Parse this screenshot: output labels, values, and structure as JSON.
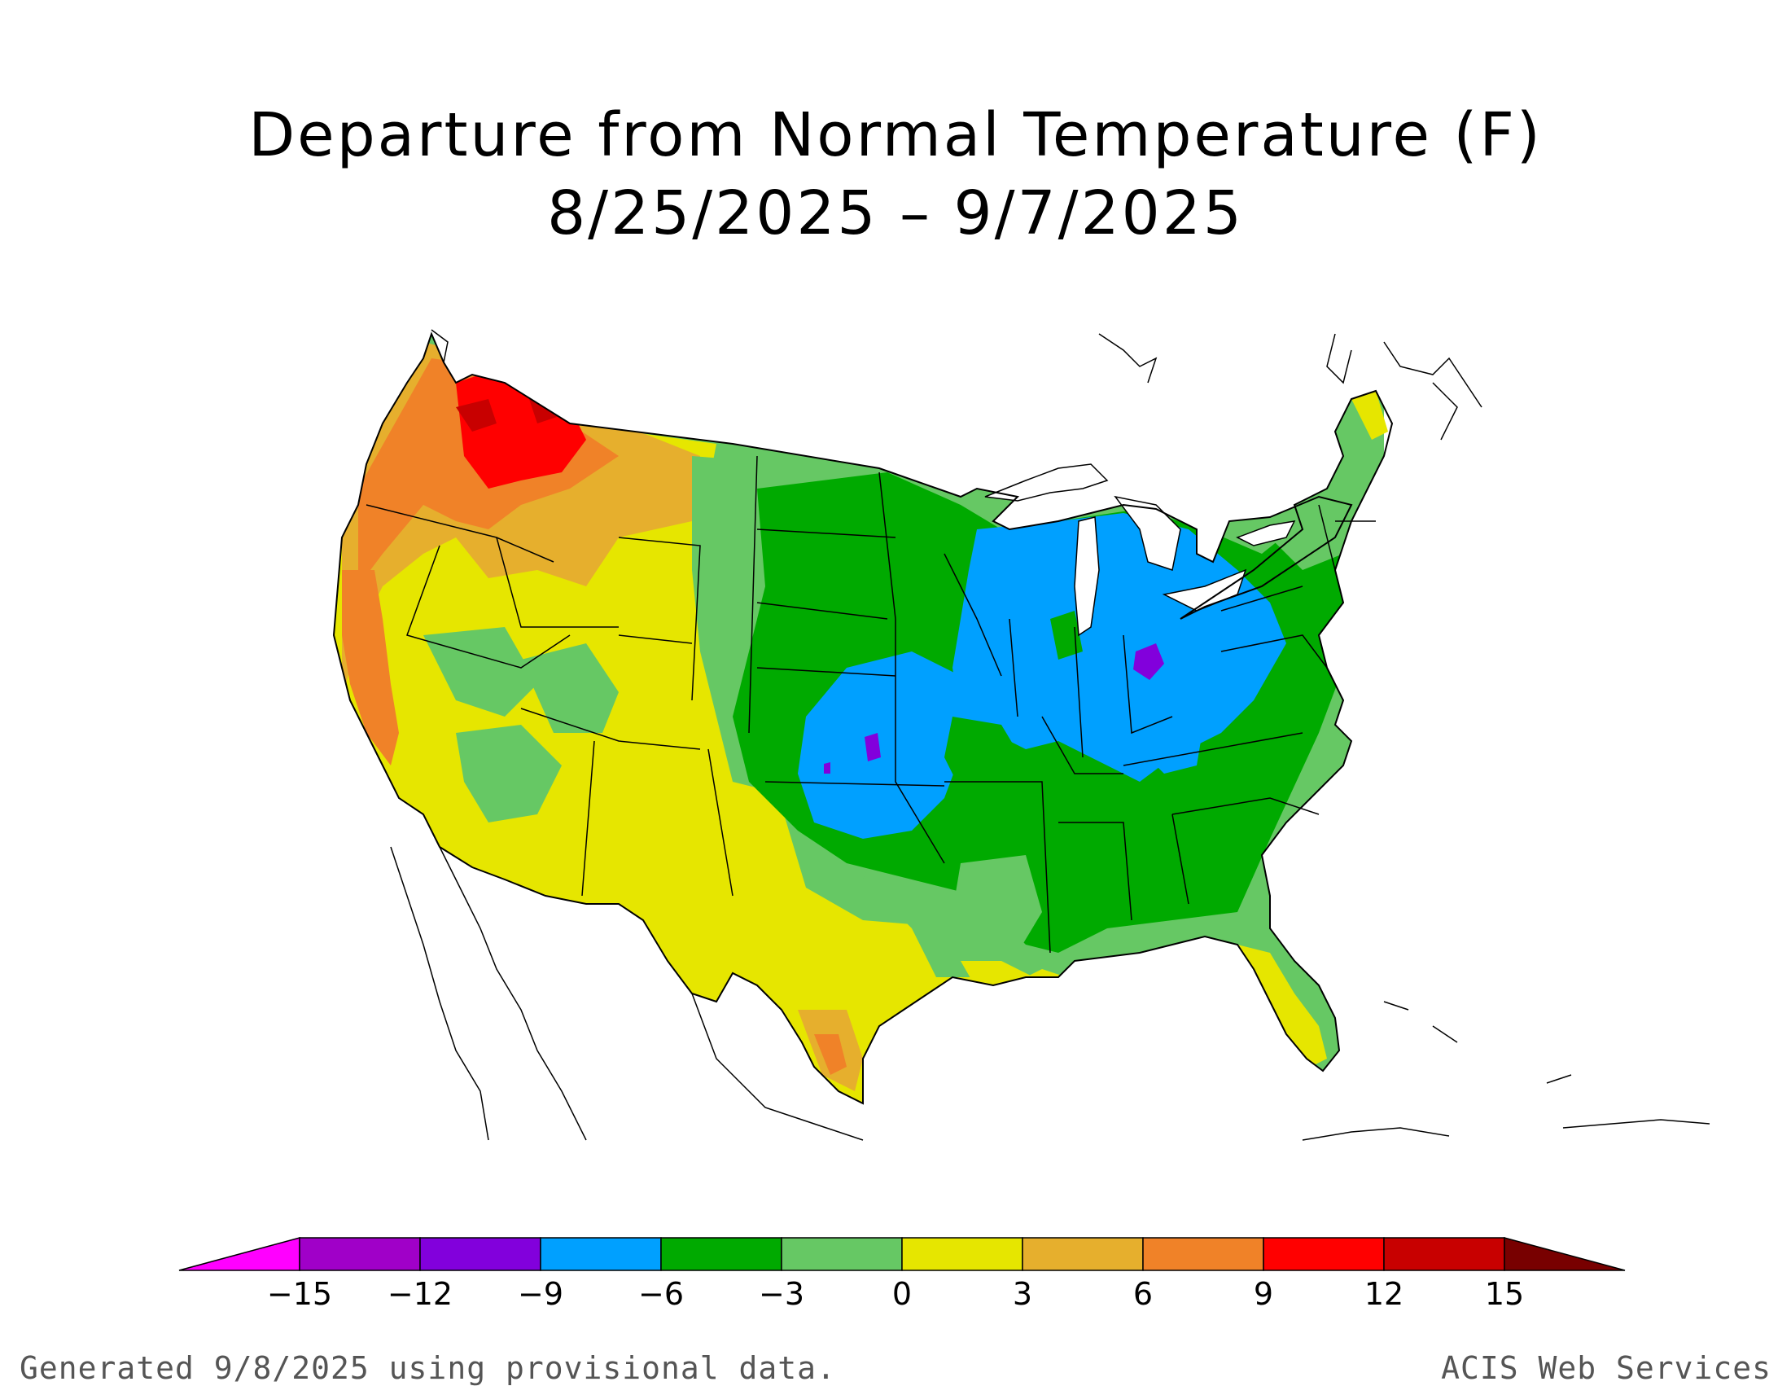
{
  "title": {
    "line1": "Departure from Normal Temperature (F)",
    "line2": "8/25/2025 – 9/7/2025"
  },
  "legend": {
    "ticks": [
      "−15",
      "−12",
      "−9",
      "−6",
      "−3",
      "0",
      "3",
      "6",
      "9",
      "12",
      "15"
    ],
    "colors": [
      "#ff00ff",
      "#a000c8",
      "#8200dc",
      "#00a0ff",
      "#00aa00",
      "#66c864",
      "#e6e600",
      "#e6af2d",
      "#f08228",
      "#ff0000",
      "#c80000",
      "#780000"
    ]
  },
  "palette": {
    "red": "#ff0000",
    "dark_red": "#c80000",
    "orange": "#f08228",
    "gold": "#e6af2d",
    "yellow": "#e6e600",
    "light_green": "#66c864",
    "green": "#00aa00",
    "blue": "#00a0ff",
    "purple": "#8200dc"
  },
  "footer": {
    "left": "Generated 9/8/2025 using provisional data.",
    "right": "ACIS Web Services"
  }
}
